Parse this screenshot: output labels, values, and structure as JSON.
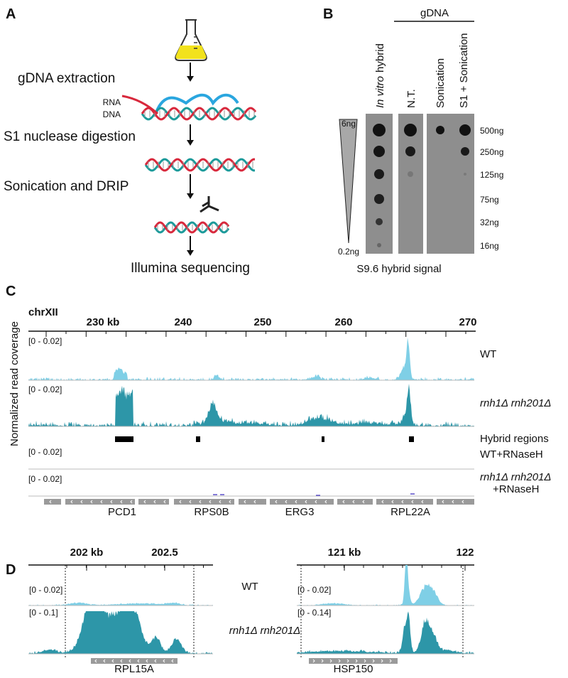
{
  "panel_a": {
    "label": "A",
    "steps": [
      "gDNA extraction",
      "S1 nuclease digestion",
      "Sonication and DRIP",
      "Illumina sequencing"
    ],
    "strand_labels": [
      "RNA",
      "DNA"
    ]
  },
  "panel_b": {
    "label": "B",
    "group_label": "gDNA",
    "columns": [
      {
        "italic": "In vitro",
        "text": "hybrid"
      },
      {
        "text": "N.T."
      },
      {
        "text": "Sonication"
      },
      {
        "text": "S1 + Sonication"
      }
    ],
    "gradient_top": "6ng",
    "gradient_bottom": "0.2ng",
    "amounts": [
      "500ng",
      "250ng",
      "125ng",
      "75ng",
      "32ng",
      "16ng"
    ],
    "caption": "S9.6 hybrid signal"
  },
  "panel_c": {
    "label": "C",
    "chromosome": "chrXII",
    "ticks": [
      "230 kb",
      "240",
      "250",
      "260",
      "270"
    ],
    "y_label": "Normalized read coverage",
    "tracks": [
      {
        "range": "[0 - 0.02]",
        "name": [
          "WT"
        ]
      },
      {
        "range": "[0 - 0.02]",
        "name": [
          "rnh1Δ rnh201Δ"
        ]
      },
      {
        "name": [
          "Hybrid regions"
        ]
      },
      {
        "range": "[0 - 0.02]",
        "name": [
          "WT+RNaseH"
        ]
      },
      {
        "range": "[0 - 0.02]",
        "name": [
          "rnh1Δ rnh201Δ",
          "+RNaseH"
        ]
      }
    ],
    "genes": [
      "PCD1",
      "RPS0B",
      "ERG3",
      "RPL22A"
    ]
  },
  "panel_d": {
    "label": "D",
    "track_names": [
      "WT",
      "rnh1Δ rnh201Δ"
    ],
    "left": {
      "ticks": [
        "202 kb",
        "202.5"
      ],
      "ranges": [
        "[0 - 0.02]",
        "[0 - 0.1]"
      ],
      "gene": "RPL15A"
    },
    "right": {
      "ticks": [
        "121 kb",
        "122"
      ],
      "ranges": [
        "[0 - 0.02]",
        "[0 - 0.14]"
      ],
      "gene": "HSP150"
    }
  }
}
